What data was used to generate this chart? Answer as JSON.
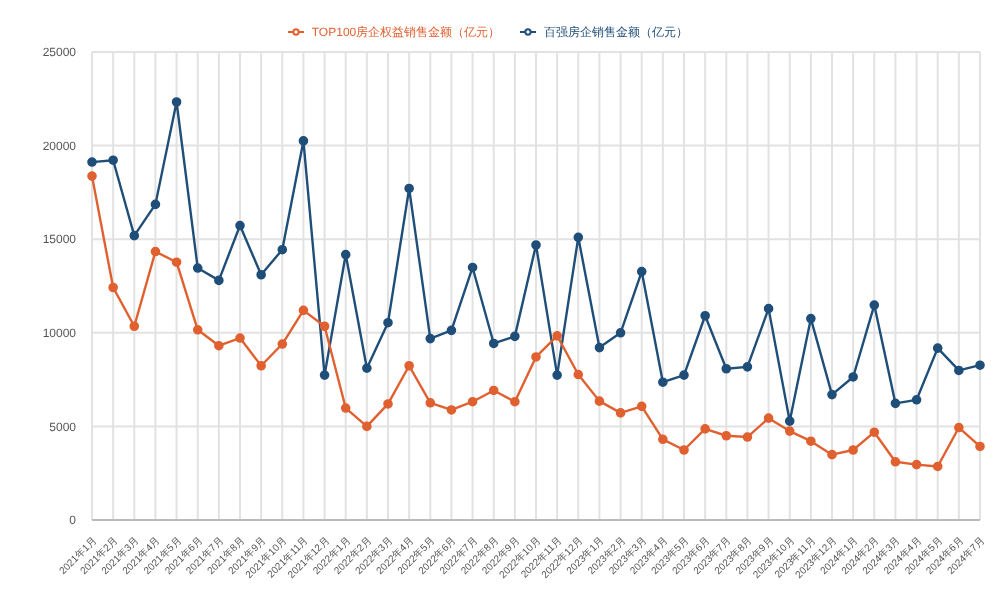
{
  "chart_data": {
    "type": "line",
    "categories": [
      "2021年1月",
      "2021年2月",
      "2021年3月",
      "2021年4月",
      "2021年5月",
      "2021年6月",
      "2021年7月",
      "2021年8月",
      "2021年9月",
      "2021年10月",
      "2021年11月",
      "2021年12月",
      "2022年1月",
      "2022年2月",
      "2022年3月",
      "2022年4月",
      "2022年5月",
      "2022年6月",
      "2022年7月",
      "2022年8月",
      "2022年9月",
      "2022年10月",
      "2022年11月",
      "2022年12月",
      "2023年1月",
      "2023年2月",
      "2023年3月",
      "2023年4月",
      "2023年5月",
      "2023年6月",
      "2023年7月",
      "2023年8月",
      "2023年9月",
      "2023年10月",
      "2023年11月",
      "2023年12月",
      "2024年1月",
      "2024年2月",
      "2024年3月",
      "2024年4月",
      "2024年5月",
      "2024年6月",
      "2024年7月"
    ],
    "series": [
      {
        "name": "百强房企销售金额（亿元）",
        "color": "#1f4e79",
        "values": [
          19120,
          19220,
          15190,
          16860,
          22330,
          13460,
          12800,
          15730,
          13100,
          14440,
          20250,
          7740,
          14180,
          8110,
          10540,
          17710,
          9690,
          10130,
          13490,
          9430,
          9810,
          14690,
          7740,
          15100,
          9210,
          10000,
          13270,
          7360,
          7740,
          10910,
          8080,
          8180,
          11290,
          5280,
          10760,
          6700,
          7640,
          11480,
          6230,
          6420,
          9180,
          7990,
          8270
        ]
      },
      {
        "name": "TOP100房企权益销售金额（亿元）",
        "color": "#e06030",
        "values": [
          18370,
          12420,
          10350,
          14340,
          13770,
          10160,
          9310,
          9720,
          8240,
          9400,
          11200,
          10350,
          5980,
          5000,
          6200,
          8240,
          6260,
          5880,
          6320,
          6920,
          6320,
          8710,
          9840,
          7770,
          6350,
          5720,
          6070,
          4310,
          3740,
          4870,
          4500,
          4430,
          5440,
          4750,
          4210,
          3490,
          3740,
          4690,
          3110,
          2960,
          2860,
          4940,
          3930
        ]
      }
    ],
    "ylim": [
      0,
      25000
    ],
    "yticks": [
      0,
      5000,
      10000,
      15000,
      20000,
      25000
    ],
    "grid": true,
    "legend": "top",
    "marker": "circle",
    "line_style": "solid"
  }
}
